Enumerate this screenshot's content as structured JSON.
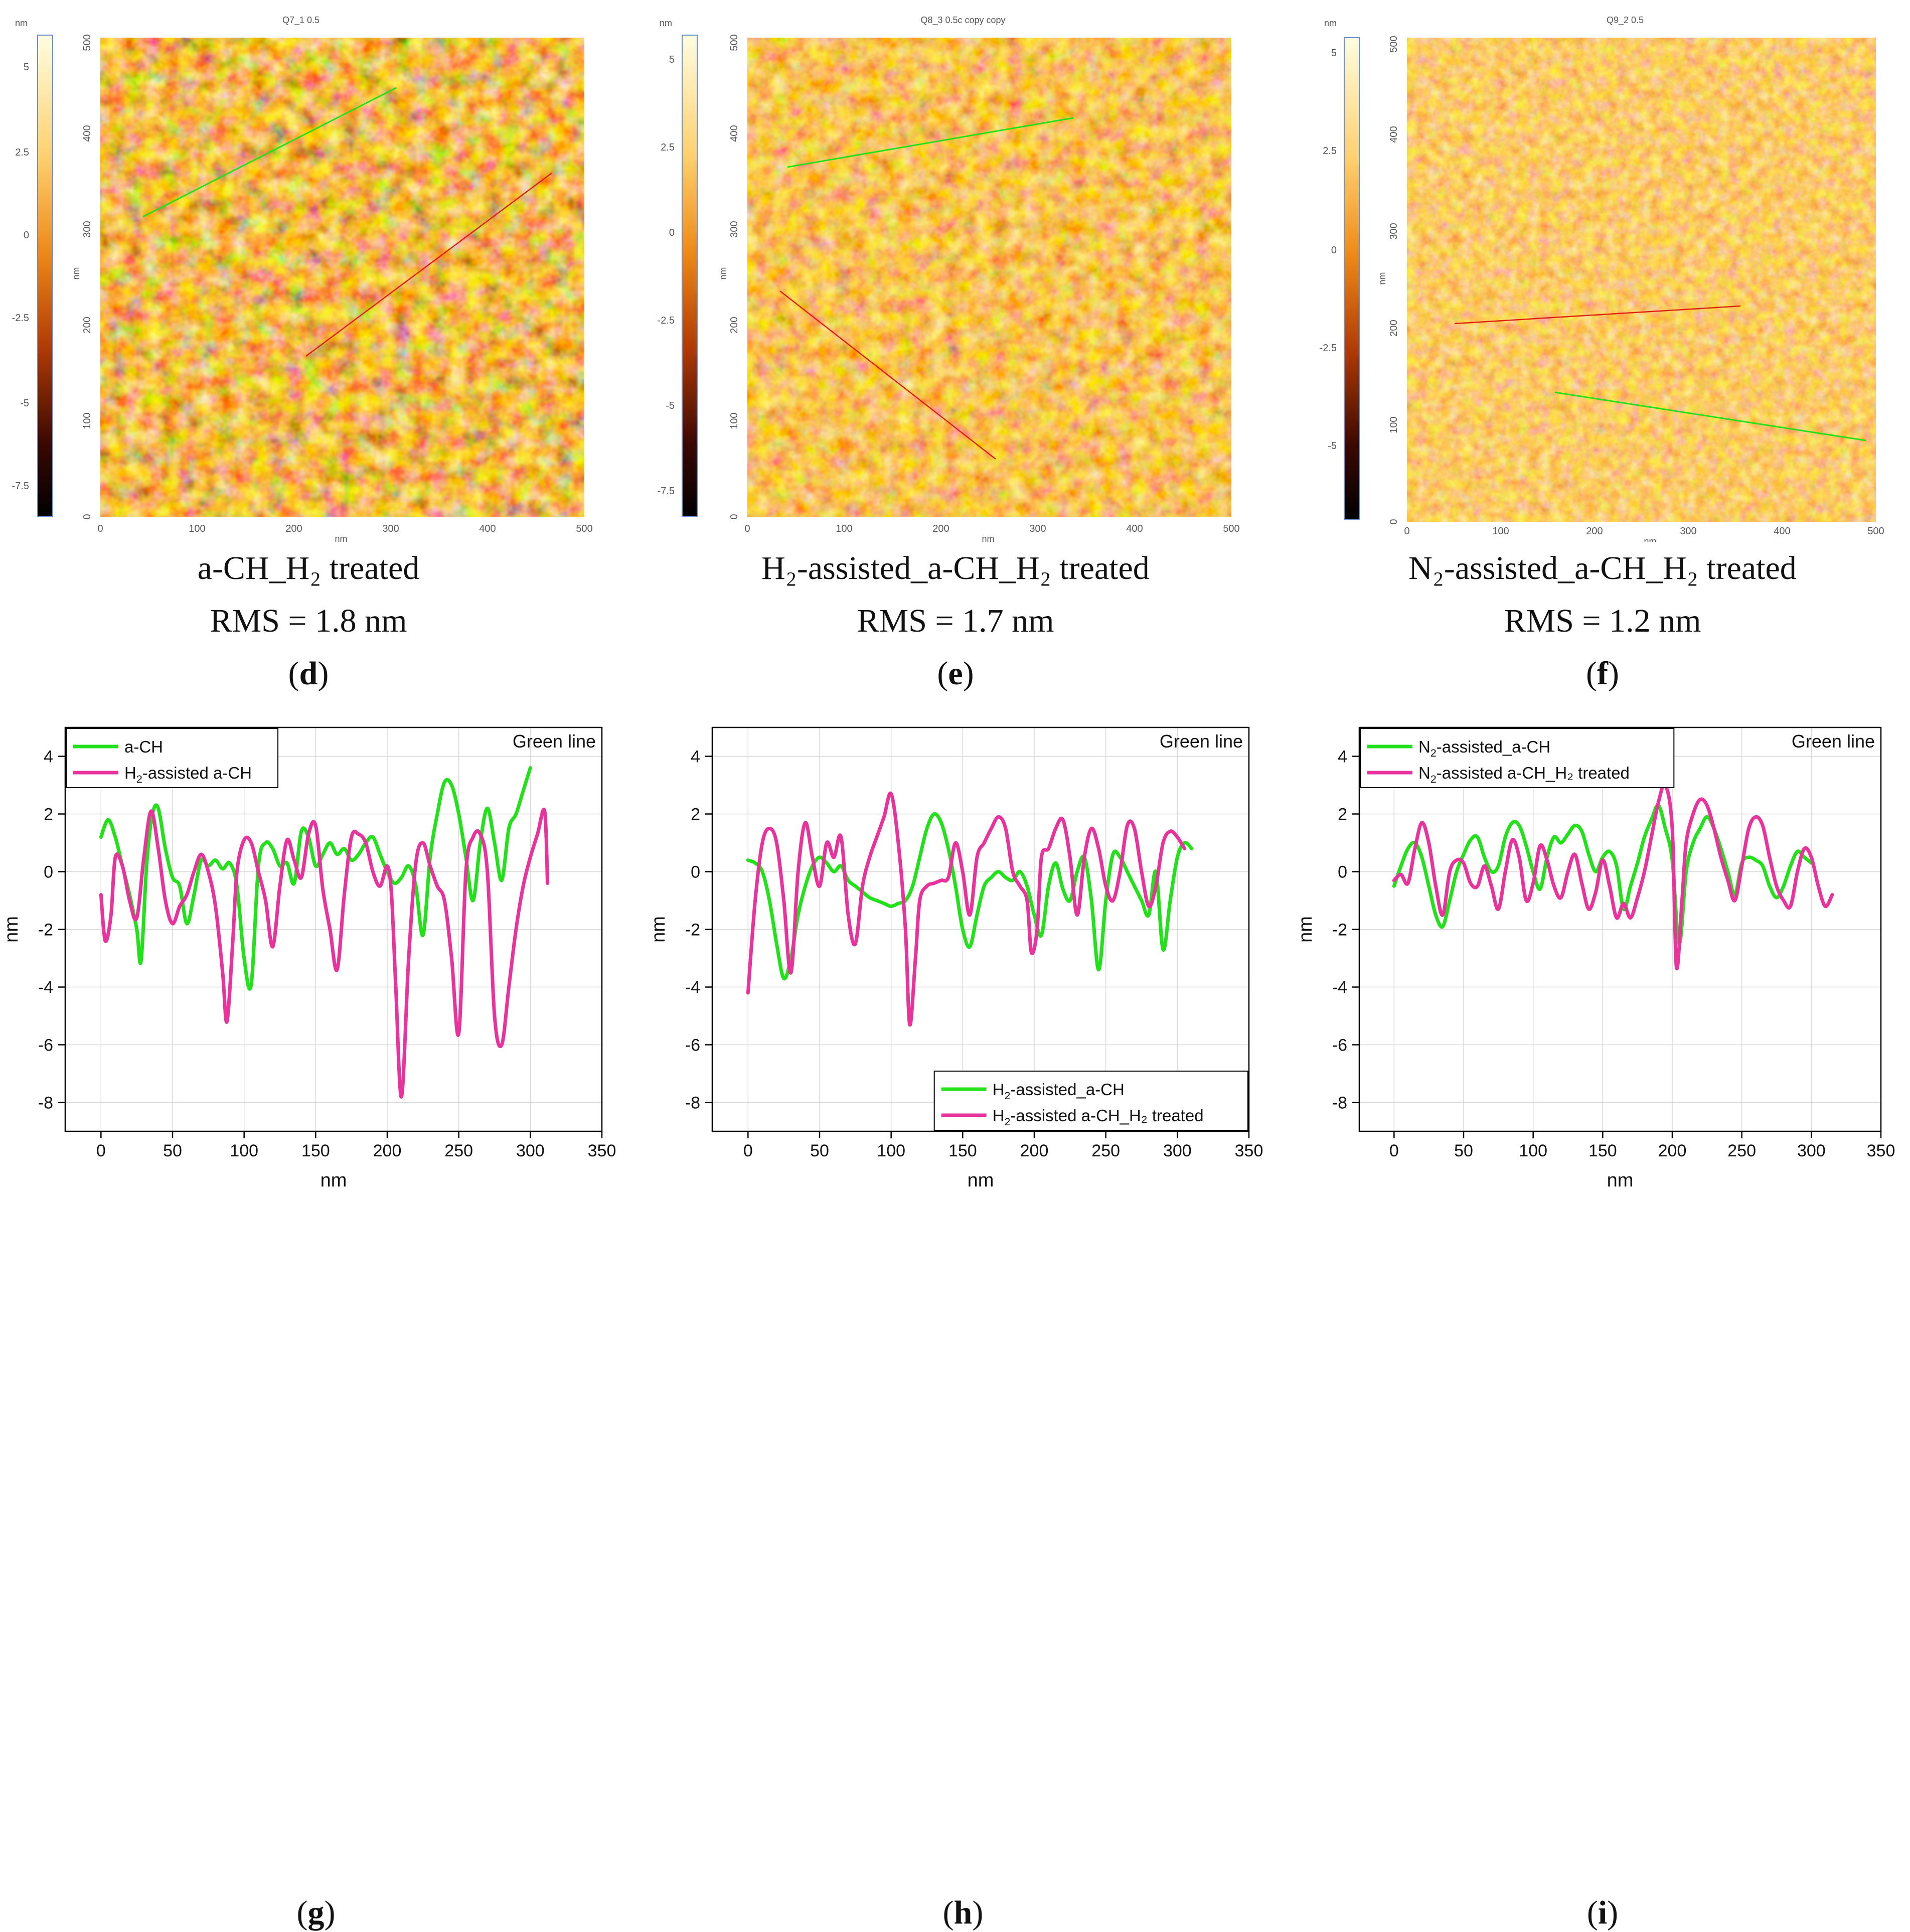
{
  "colors": {
    "green": "#22e01a",
    "magenta": "#e8339c",
    "afm_dark": "#2a0500",
    "afm_mid": "#e87a10",
    "afm_light": "#fffde0"
  },
  "afm": [
    {
      "title": "Q7_1 0.5",
      "caption_name": "a-CH_H₂ treated",
      "caption_rms": "RMS = 1.8 nm",
      "label": "d",
      "colorbar_unit": "nm",
      "colorbar_ticks": [
        "5",
        "2.5",
        "0",
        "-2.5",
        "-5",
        "-7.5"
      ],
      "x_ticks": [
        "0",
        "100",
        "200",
        "300",
        "400",
        "500"
      ],
      "y_ticks": [
        "0",
        "100",
        "200",
        "300",
        "400",
        "500"
      ],
      "axis_unit": "nm"
    },
    {
      "title": "Q8_3 0.5c copy copy",
      "caption_name": "H₂-assisted_a-CH_H₂ treated",
      "caption_rms": "RMS = 1.7 nm",
      "label": "e",
      "colorbar_unit": "nm",
      "colorbar_ticks": [
        "5",
        "2.5",
        "0",
        "-2.5",
        "-5",
        "-7.5"
      ],
      "x_ticks": [
        "0",
        "100",
        "200",
        "300",
        "400",
        "500"
      ],
      "y_ticks": [
        "0",
        "100",
        "200",
        "300",
        "400",
        "500"
      ],
      "axis_unit": "nm"
    },
    {
      "title": "Q9_2 0.5",
      "caption_name": "N₂-assisted_a-CH_H₂ treated",
      "caption_rms": "RMS = 1.2 nm",
      "label": "f",
      "colorbar_unit": "nm",
      "colorbar_ticks": [
        "5",
        "2.5",
        "0",
        "-2.5",
        "-5"
      ],
      "x_ticks": [
        "0",
        "100",
        "200",
        "300",
        "400",
        "500"
      ],
      "y_ticks": [
        "0",
        "100",
        "200",
        "300",
        "400",
        "500"
      ],
      "axis_unit": "nm"
    }
  ],
  "chart_data": [
    {
      "type": "line",
      "label": "g",
      "annotation": "Green line",
      "xlabel": "nm",
      "ylabel": "nm",
      "xlim": [
        -25,
        350
      ],
      "ylim": [
        -9,
        5
      ],
      "x_ticks": [
        0,
        50,
        100,
        150,
        200,
        250,
        300,
        350
      ],
      "y_ticks": [
        -8,
        -6,
        -4,
        -2,
        0,
        2,
        4
      ],
      "legend_position": "top-left",
      "legend_labels": [
        {
          "main": "a-CH",
          "sub": "",
          "tail": ""
        },
        {
          "main": "H",
          "sub": "2",
          "tail": "-assisted a-CH"
        }
      ],
      "series": [
        {
          "name": "a-CH",
          "color": "#22e01a",
          "x": [
            0,
            5,
            10,
            15,
            20,
            25,
            28,
            32,
            36,
            40,
            45,
            50,
            55,
            60,
            65,
            70,
            75,
            80,
            85,
            90,
            95,
            100,
            105,
            110,
            115,
            120,
            125,
            130,
            135,
            140,
            145,
            150,
            155,
            160,
            165,
            170,
            175,
            180,
            185,
            190,
            195,
            200,
            205,
            210,
            215,
            220,
            225,
            230,
            235,
            240,
            245,
            250,
            255,
            260,
            265,
            270,
            275,
            280,
            285,
            290,
            295,
            300
          ],
          "values": [
            1.2,
            1.8,
            1.2,
            0.2,
            -0.8,
            -2.0,
            -3.1,
            0.3,
            2.0,
            2.2,
            0.8,
            -0.2,
            -0.5,
            -1.8,
            -0.8,
            0.4,
            0.2,
            0.4,
            0.1,
            0.3,
            -0.5,
            -3.0,
            -3.9,
            0.2,
            1.0,
            0.8,
            0.2,
            0.3,
            -0.4,
            1.4,
            1.2,
            0.2,
            0.6,
            1.0,
            0.6,
            0.8,
            0.4,
            0.6,
            1.0,
            1.2,
            0.6,
            0.0,
            -0.4,
            -0.2,
            0.2,
            -0.5,
            -2.2,
            0.5,
            2.0,
            3.1,
            3.0,
            2.0,
            0.5,
            -1.0,
            1.0,
            2.2,
            1.0,
            -0.3,
            1.5,
            2.0,
            2.8,
            3.6
          ]
        },
        {
          "name": "H₂-assisted a-CH",
          "color": "#e8339c",
          "x": [
            0,
            3,
            7,
            10,
            15,
            20,
            25,
            30,
            35,
            40,
            45,
            50,
            55,
            60,
            65,
            70,
            75,
            80,
            85,
            88,
            92,
            95,
            100,
            105,
            110,
            115,
            120,
            125,
            130,
            135,
            140,
            145,
            150,
            155,
            160,
            165,
            170,
            175,
            180,
            185,
            190,
            195,
            200,
            203,
            206,
            210,
            215,
            220,
            225,
            230,
            235,
            240,
            245,
            250,
            255,
            260,
            265,
            270,
            275,
            280,
            285,
            290,
            295,
            300,
            305,
            310,
            312
          ],
          "values": [
            -0.8,
            -2.4,
            -1.5,
            0.5,
            0.2,
            -1.0,
            -1.6,
            0.5,
            2.1,
            0.8,
            -1.0,
            -1.8,
            -1.2,
            -0.8,
            0.0,
            0.6,
            0.0,
            -1.2,
            -3.5,
            -5.2,
            -2.5,
            0.0,
            1.1,
            1.0,
            0.0,
            -1.0,
            -2.6,
            -0.5,
            1.1,
            0.4,
            -0.2,
            1.3,
            1.6,
            -0.6,
            -2.0,
            -3.4,
            -0.8,
            1.2,
            1.3,
            1.0,
            0.0,
            -0.5,
            0.2,
            -0.8,
            -4.0,
            -7.8,
            -3.0,
            0.3,
            1.0,
            0.2,
            -0.5,
            -1.0,
            -3.0,
            -5.6,
            0.0,
            1.2,
            1.3,
            0.0,
            -5.0,
            -6.0,
            -4.0,
            -2.0,
            -0.5,
            0.5,
            1.3,
            2.1,
            -0.4
          ]
        }
      ]
    },
    {
      "type": "line",
      "label": "h",
      "annotation": "Green line",
      "xlabel": "nm",
      "ylabel": "nm",
      "xlim": [
        -25,
        350
      ],
      "ylim": [
        -9,
        5
      ],
      "x_ticks": [
        0,
        50,
        100,
        150,
        200,
        250,
        300,
        350
      ],
      "y_ticks": [
        -8,
        -6,
        -4,
        -2,
        0,
        2,
        4
      ],
      "legend_position": "bottom-right",
      "legend_labels": [
        {
          "main": "H",
          "sub": "2",
          "tail": "-assisted_a-CH"
        },
        {
          "main": "H",
          "sub": "2",
          "tail": "-assisted a-CH_H₂ treated"
        }
      ],
      "series": [
        {
          "name": "H₂-assisted_a-CH",
          "color": "#22e01a",
          "x": [
            0,
            5,
            10,
            15,
            20,
            25,
            30,
            35,
            40,
            45,
            50,
            55,
            60,
            65,
            70,
            75,
            80,
            85,
            90,
            95,
            100,
            105,
            110,
            115,
            120,
            125,
            130,
            135,
            140,
            145,
            150,
            155,
            160,
            165,
            170,
            175,
            180,
            185,
            190,
            195,
            200,
            205,
            210,
            215,
            220,
            225,
            230,
            235,
            240,
            245,
            250,
            255,
            260,
            265,
            270,
            275,
            280,
            285,
            290,
            295,
            300,
            305,
            310
          ],
          "values": [
            0.4,
            0.3,
            0.0,
            -1.0,
            -2.5,
            -3.7,
            -3.0,
            -1.5,
            -0.5,
            0.2,
            0.5,
            0.3,
            0.0,
            0.2,
            -0.3,
            -0.5,
            -0.7,
            -0.9,
            -1.0,
            -1.1,
            -1.2,
            -1.1,
            -1.0,
            -0.5,
            0.5,
            1.5,
            2.0,
            1.7,
            0.8,
            -0.5,
            -2.0,
            -2.6,
            -1.5,
            -0.5,
            -0.2,
            0.0,
            -0.2,
            -0.3,
            0.0,
            -0.5,
            -1.5,
            -2.2,
            -0.5,
            0.3,
            -0.6,
            -1.0,
            0.0,
            0.5,
            -1.0,
            -3.4,
            -1.0,
            0.6,
            0.5,
            0.0,
            -0.5,
            -1.0,
            -1.5,
            0.0,
            -2.7,
            -1.0,
            0.5,
            1.0,
            0.8
          ]
        },
        {
          "name": "H₂-assisted a-CH_H₂ treated",
          "color": "#e8339c",
          "x": [
            0,
            5,
            10,
            15,
            20,
            25,
            30,
            35,
            40,
            45,
            50,
            55,
            60,
            65,
            70,
            75,
            80,
            85,
            90,
            95,
            100,
            105,
            110,
            113,
            117,
            120,
            125,
            130,
            135,
            140,
            145,
            150,
            155,
            160,
            165,
            170,
            175,
            180,
            185,
            190,
            195,
            198,
            202,
            205,
            210,
            215,
            220,
            225,
            230,
            235,
            240,
            245,
            250,
            255,
            260,
            265,
            270,
            275,
            280,
            285,
            290,
            295,
            300,
            305
          ],
          "values": [
            -4.2,
            -1.0,
            1.0,
            1.5,
            1.0,
            -1.0,
            -3.5,
            0.0,
            1.7,
            0.5,
            -0.5,
            1.0,
            0.5,
            1.2,
            -1.5,
            -2.5,
            -0.5,
            0.5,
            1.2,
            1.9,
            2.7,
            1.0,
            -2.0,
            -5.3,
            -3.0,
            -1.0,
            -0.5,
            -0.4,
            -0.3,
            -0.2,
            1.0,
            0.0,
            -1.5,
            0.5,
            1.0,
            1.5,
            1.9,
            1.5,
            0.0,
            -0.5,
            -1.0,
            -2.8,
            -2.0,
            0.5,
            0.8,
            1.5,
            1.8,
            0.5,
            -1.5,
            0.5,
            1.5,
            0.8,
            -0.5,
            -1.0,
            0.0,
            1.6,
            1.5,
            0.0,
            -1.2,
            -0.5,
            1.0,
            1.4,
            1.2,
            0.8
          ]
        }
      ]
    },
    {
      "type": "line",
      "label": "i",
      "annotation": "Green line",
      "xlabel": "nm",
      "ylabel": "nm",
      "xlim": [
        -25,
        350
      ],
      "ylim": [
        -9,
        5
      ],
      "x_ticks": [
        0,
        50,
        100,
        150,
        200,
        250,
        300,
        350
      ],
      "y_ticks": [
        -8,
        -6,
        -4,
        -2,
        0,
        2,
        4
      ],
      "legend_position": "top-left",
      "legend_labels": [
        {
          "main": "N",
          "sub": "2",
          "tail": "-assisted_a-CH"
        },
        {
          "main": "N",
          "sub": "2",
          "tail": "-assisted a-CH_H₂ treated"
        }
      ],
      "series": [
        {
          "name": "N₂-assisted_a-CH",
          "color": "#22e01a",
          "x": [
            0,
            5,
            10,
            15,
            20,
            25,
            30,
            35,
            40,
            45,
            50,
            55,
            60,
            65,
            70,
            75,
            80,
            85,
            90,
            95,
            100,
            105,
            110,
            115,
            120,
            125,
            130,
            135,
            140,
            145,
            150,
            155,
            160,
            165,
            170,
            175,
            180,
            185,
            190,
            195,
            200,
            205,
            210,
            215,
            220,
            225,
            230,
            235,
            240,
            245,
            250,
            255,
            260,
            265,
            270,
            275,
            280,
            285,
            290,
            295,
            300
          ],
          "values": [
            -0.5,
            0.2,
            0.8,
            1.0,
            0.5,
            -0.5,
            -1.5,
            -1.9,
            -1.0,
            0.0,
            0.6,
            1.1,
            1.2,
            0.5,
            0.0,
            0.2,
            1.2,
            1.7,
            1.6,
            0.9,
            0.0,
            -0.6,
            0.5,
            1.2,
            1.0,
            1.3,
            1.6,
            1.4,
            0.6,
            0.0,
            0.5,
            0.7,
            0.2,
            -1.3,
            -0.5,
            0.3,
            1.2,
            1.8,
            2.3,
            1.5,
            0.4,
            -2.5,
            0.0,
            1.0,
            1.5,
            1.9,
            1.5,
            0.8,
            0.0,
            -0.8,
            0.3,
            0.5,
            0.4,
            0.2,
            -0.5,
            -0.9,
            -0.5,
            0.2,
            0.7,
            0.5,
            0.3
          ]
        },
        {
          "name": "N₂-assisted a-CH_H₂ treated",
          "color": "#e8339c",
          "x": [
            0,
            5,
            10,
            15,
            20,
            25,
            30,
            35,
            40,
            45,
            50,
            55,
            60,
            65,
            70,
            75,
            80,
            85,
            90,
            95,
            100,
            105,
            110,
            115,
            120,
            125,
            130,
            135,
            140,
            145,
            150,
            155,
            160,
            165,
            170,
            175,
            180,
            185,
            190,
            195,
            200,
            203,
            207,
            210,
            215,
            220,
            225,
            230,
            235,
            240,
            245,
            250,
            255,
            260,
            265,
            270,
            275,
            280,
            285,
            290,
            295,
            300,
            305,
            310,
            315
          ],
          "values": [
            -0.3,
            -0.1,
            -0.4,
            0.8,
            1.7,
            1.0,
            -0.5,
            -1.5,
            0.0,
            0.4,
            0.3,
            -0.4,
            -0.5,
            0.2,
            -0.5,
            -1.3,
            0.0,
            1.1,
            0.5,
            -1.0,
            -0.4,
            0.9,
            0.4,
            -0.5,
            -0.9,
            0.0,
            0.6,
            -0.4,
            -1.3,
            -0.7,
            0.4,
            -0.5,
            -1.6,
            -1.1,
            -1.6,
            -0.9,
            0.0,
            1.2,
            2.4,
            3.0,
            1.5,
            -3.3,
            -1.0,
            1.0,
            2.0,
            2.5,
            2.3,
            1.5,
            0.5,
            -0.3,
            -1.0,
            0.2,
            1.5,
            1.9,
            1.6,
            0.5,
            -0.5,
            -1.0,
            -1.2,
            0.0,
            0.8,
            0.5,
            -0.5,
            -1.2,
            -0.8
          ]
        }
      ]
    }
  ]
}
